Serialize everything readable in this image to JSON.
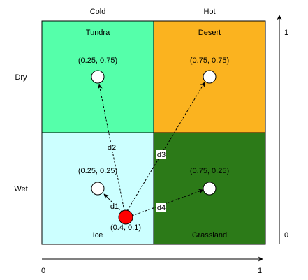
{
  "columns": [
    {
      "label": "Cold"
    },
    {
      "label": "Hot"
    }
  ],
  "rows": [
    {
      "label": "Dry"
    },
    {
      "label": "Wet"
    }
  ],
  "cells": [
    {
      "name": "Tundra",
      "color": "#55ffaa",
      "label": "(0.25, 0.75)"
    },
    {
      "name": "Desert",
      "color": "#fbb31f",
      "label": "(0.75, 0.75)"
    },
    {
      "name": "Ice",
      "color": "#ccffff",
      "label": "(0.25, 0.25)"
    },
    {
      "name": "Grassland",
      "color": "#2c7a18",
      "label": "(0.75, 0.25)"
    }
  ],
  "query_point": {
    "label": "(0.4, 0.1)",
    "color": "#ff0000"
  },
  "distances": [
    {
      "label": "d1"
    },
    {
      "label": "d2"
    },
    {
      "label": "d3"
    },
    {
      "label": "d4"
    }
  ],
  "x_axis": {
    "min_label": "0",
    "max_label": "1"
  },
  "y_axis": {
    "min_label": "0",
    "max_label": "1"
  }
}
